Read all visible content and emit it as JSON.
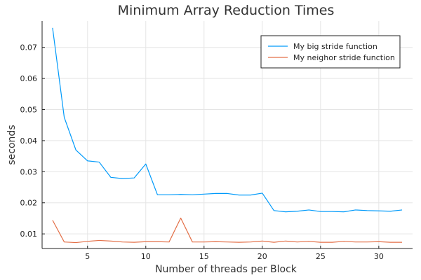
{
  "chart_data": {
    "type": "line",
    "title": "Minimum Array Reduction Times",
    "xlabel": "Number of threads per Block",
    "ylabel": "seconds",
    "xlim": [
      1.1,
      32.9
    ],
    "ylim": [
      0.0053,
      0.0785
    ],
    "xticks": [
      5,
      10,
      15,
      20,
      25,
      30
    ],
    "yticks": [
      0.01,
      0.02,
      0.03,
      0.04,
      0.05,
      0.06,
      0.07
    ],
    "ytick_labels": [
      "0.01",
      "0.02",
      "0.03",
      "0.04",
      "0.05",
      "0.06",
      "0.07"
    ],
    "grid": true,
    "legend_position": "top-right",
    "x": [
      2,
      3,
      4,
      5,
      6,
      7,
      8,
      9,
      10,
      11,
      12,
      13,
      14,
      15,
      16,
      17,
      18,
      19,
      20,
      21,
      22,
      23,
      24,
      25,
      26,
      27,
      28,
      29,
      30,
      31,
      32
    ],
    "series": [
      {
        "name": "My big stride function",
        "color": "#009AFA",
        "values": [
          0.0763,
          0.0475,
          0.037,
          0.0335,
          0.0331,
          0.0282,
          0.0278,
          0.028,
          0.0325,
          0.0226,
          0.0226,
          0.0227,
          0.0226,
          0.0228,
          0.023,
          0.023,
          0.0225,
          0.0225,
          0.0231,
          0.0175,
          0.0171,
          0.0173,
          0.0177,
          0.0172,
          0.0172,
          0.0171,
          0.0177,
          0.0175,
          0.0174,
          0.0173,
          0.0177
        ]
      },
      {
        "name": "My neighor stride function",
        "color": "#E36F47",
        "values": [
          0.0144,
          0.0074,
          0.0072,
          0.0076,
          0.0079,
          0.0077,
          0.0074,
          0.0073,
          0.0075,
          0.0075,
          0.0074,
          0.0151,
          0.0074,
          0.0074,
          0.0075,
          0.0074,
          0.0073,
          0.0074,
          0.0077,
          0.0073,
          0.0077,
          0.0074,
          0.0076,
          0.0073,
          0.0073,
          0.0076,
          0.0074,
          0.0074,
          0.0075,
          0.0073,
          0.0073
        ]
      }
    ]
  }
}
